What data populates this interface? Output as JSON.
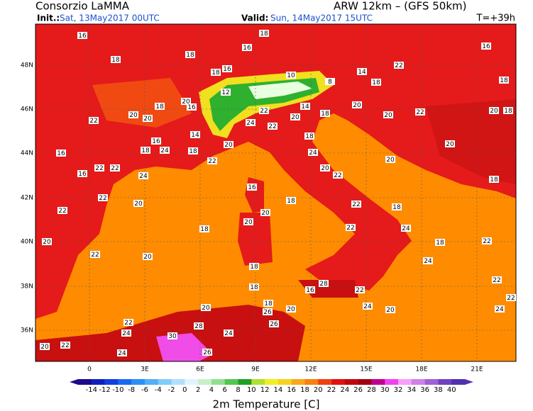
{
  "header": {
    "title": "Consorzio LaMMA",
    "model": "ARW 12km – (GFS 50km)",
    "init_label": "Init.:",
    "init": "Sat, 13May2017 00UTC",
    "valid_label": "Valid:",
    "valid": "Sun, 14May2017 15UTC",
    "lead": "T=+39h"
  },
  "map": {
    "lat_labels": [
      "48N",
      "46N",
      "44N",
      "42N",
      "40N",
      "38N",
      "36N"
    ],
    "lon_labels": [
      "0",
      "3E",
      "6E",
      "9E",
      "12E",
      "15E",
      "18E",
      "21E"
    ],
    "stations": [
      16,
      18,
      16,
      18,
      18,
      16,
      18,
      16,
      22,
      14,
      18,
      10,
      12,
      8,
      18,
      20,
      18,
      16,
      20,
      20,
      22,
      22,
      20,
      14,
      18,
      20,
      20,
      22,
      20,
      18,
      24,
      22,
      14,
      20,
      18,
      20,
      16,
      18,
      24,
      16,
      18,
      22,
      24,
      20,
      20,
      22,
      16,
      22,
      22,
      24,
      18,
      16,
      18,
      20,
      22,
      22,
      18,
      20,
      20,
      22,
      18,
      24,
      22,
      18,
      22,
      20,
      22,
      20,
      18,
      18,
      16,
      28,
      22,
      24,
      22,
      20,
      22,
      24,
      20,
      24,
      20,
      26,
      18,
      22,
      24,
      24,
      26,
      30,
      28,
      20,
      22,
      24,
      26
    ]
  },
  "colorbar": {
    "title": "2m Temperature [C]",
    "labels": [
      -14,
      -12,
      -10,
      -8,
      -6,
      -4,
      -2,
      0,
      2,
      4,
      6,
      8,
      10,
      12,
      14,
      16,
      18,
      20,
      22,
      24,
      26,
      28,
      30,
      32,
      34,
      36,
      38,
      40
    ]
  }
}
